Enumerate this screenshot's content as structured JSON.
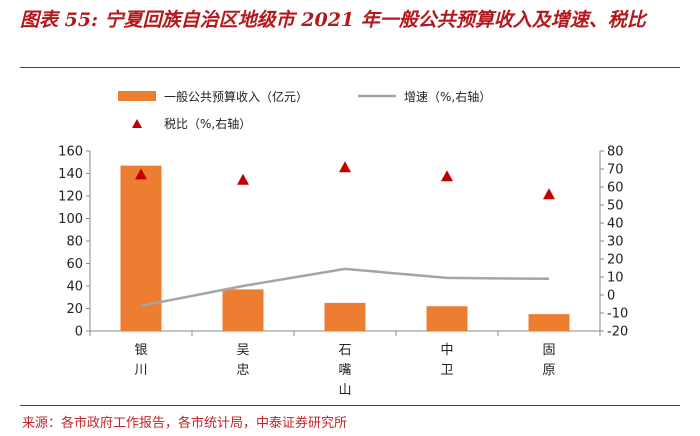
{
  "figure_title": "图表 55: 宁夏回族自治区地级市 2021 年一般公共预算收入及增速、税比",
  "source": "来源：各市政府工作报告，各市统计局，中泰证券研究所",
  "colors": {
    "bar": "#ed7d31",
    "line": "#a5a5a5",
    "marker": "#c00000",
    "title": "#b3191c"
  },
  "chart_data": {
    "type": "bar",
    "categories": [
      "银川",
      "吴忠",
      "石嘴山",
      "中卫",
      "固原"
    ],
    "series": [
      {
        "name": "一般公共预算收入（亿元）",
        "type": "bar",
        "axis": "left",
        "values": [
          147,
          37,
          25,
          22,
          15
        ]
      },
      {
        "name": "增速（%,右轴）",
        "type": "line",
        "axis": "right",
        "values": [
          -6,
          5,
          14.5,
          9.5,
          9
        ]
      },
      {
        "name": "税比（%,右轴）",
        "type": "scatter",
        "marker": "triangle",
        "axis": "right",
        "values": [
          67,
          64,
          71,
          66,
          56
        ]
      }
    ],
    "y_left": {
      "min": 0,
      "max": 160,
      "ticks": [
        0,
        20,
        40,
        60,
        80,
        100,
        120,
        140,
        160
      ]
    },
    "y_right": {
      "min": -20,
      "max": 80,
      "ticks": [
        -20,
        -10,
        0,
        10,
        20,
        30,
        40,
        50,
        60,
        70,
        80
      ]
    },
    "grid": false,
    "legend_position": "top"
  }
}
